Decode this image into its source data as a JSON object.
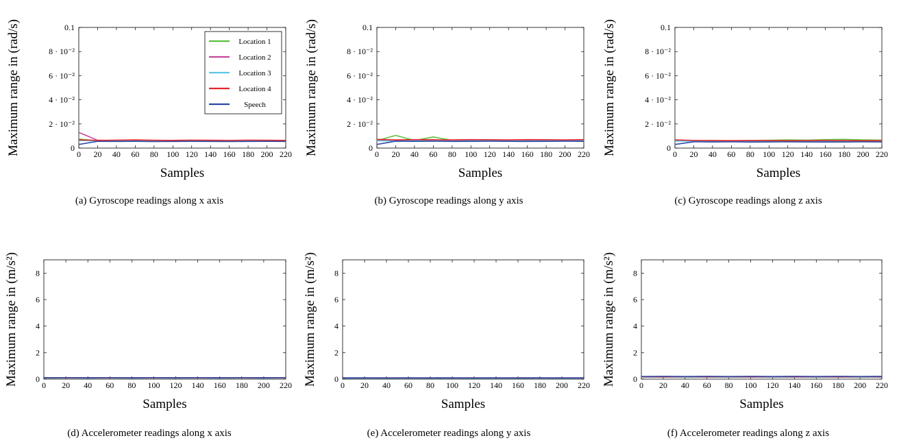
{
  "colors": {
    "Location 1": "#5cbf3a",
    "Location 2": "#c7479a",
    "Location 3": "#5bc6e6",
    "Location 4": "#e8242a",
    "Speech": "#2e4aa6"
  },
  "chart_data": [
    {
      "type": "line",
      "id": "a",
      "caption": "(a) Gyroscope readings along x axis",
      "xlabel": "Samples",
      "ylabel": "Maximum range in (rad/s)",
      "xlim": [
        0,
        220
      ],
      "ylim": [
        0,
        0.1
      ],
      "x_ticks": [
        0,
        20,
        40,
        60,
        80,
        100,
        120,
        140,
        160,
        180,
        200,
        220
      ],
      "x_tick_labels": [
        "0",
        "20",
        "40",
        "60",
        "80",
        "100",
        "120",
        "140",
        "160",
        "180",
        "200",
        "220"
      ],
      "y_ticks": [
        0,
        0.02,
        0.04,
        0.06,
        0.08,
        0.1
      ],
      "y_tick_labels": [
        "0",
        "2 · 10⁻²",
        "4 · 10⁻²",
        "6 · 10⁻²",
        "8 · 10⁻²",
        "0.1"
      ],
      "legend": "top-right",
      "series": [
        {
          "name": "Location 1",
          "values": [
            0.0075,
            0.006,
            0.0062,
            0.0058,
            0.0061,
            0.0059,
            0.006,
            0.0062,
            0.0058,
            0.006,
            0.0061,
            0.0059
          ]
        },
        {
          "name": "Location 2",
          "values": [
            0.013,
            0.0065,
            0.0062,
            0.006,
            0.0063,
            0.0061,
            0.006,
            0.0062,
            0.006,
            0.0061,
            0.0062,
            0.006
          ]
        },
        {
          "name": "Location 3",
          "values": [
            0.0062,
            0.006,
            0.0059,
            0.0061,
            0.006,
            0.0058,
            0.006,
            0.0059,
            0.0061,
            0.006,
            0.0059,
            0.006
          ]
        },
        {
          "name": "Location 4",
          "values": [
            0.0068,
            0.0064,
            0.0066,
            0.0068,
            0.0065,
            0.0064,
            0.0066,
            0.0065,
            0.0064,
            0.0066,
            0.0065,
            0.0064
          ]
        },
        {
          "name": "Speech",
          "values": [
            0.003,
            0.0056,
            0.0055,
            0.0056,
            0.0054,
            0.0055,
            0.0056,
            0.0055,
            0.0054,
            0.0055,
            0.0056,
            0.0055
          ]
        }
      ]
    },
    {
      "type": "line",
      "id": "b",
      "caption": "(b) Gyroscope readings along y axis",
      "xlabel": "Samples",
      "ylabel": "Maximum range in (rad/s)",
      "xlim": [
        0,
        220
      ],
      "ylim": [
        0,
        0.1
      ],
      "x_ticks": [
        0,
        20,
        40,
        60,
        80,
        100,
        120,
        140,
        160,
        180,
        200,
        220
      ],
      "x_tick_labels": [
        "0",
        "20",
        "40",
        "60",
        "80",
        "100",
        "120",
        "140",
        "160",
        "180",
        "200",
        "220"
      ],
      "y_ticks": [
        0,
        0.02,
        0.04,
        0.06,
        0.08,
        0.1
      ],
      "y_tick_labels": [
        "0",
        "2 · 10⁻²",
        "4 · 10⁻²",
        "6 · 10⁻²",
        "8 · 10⁻²",
        "0.1"
      ],
      "legend": "none",
      "series": [
        {
          "name": "Location 1",
          "values": [
            0.0062,
            0.0105,
            0.0063,
            0.0092,
            0.0064,
            0.0062,
            0.0063,
            0.0062,
            0.0064,
            0.0063,
            0.0062,
            0.0063
          ]
        },
        {
          "name": "Location 2",
          "values": [
            0.0064,
            0.0063,
            0.0062,
            0.0064,
            0.0063,
            0.0062,
            0.0064,
            0.0063,
            0.0062,
            0.0064,
            0.0063,
            0.0062
          ]
        },
        {
          "name": "Location 3",
          "values": [
            0.006,
            0.0059,
            0.0061,
            0.006,
            0.0059,
            0.006,
            0.0061,
            0.006,
            0.0059,
            0.006,
            0.0061,
            0.006
          ]
        },
        {
          "name": "Location 4",
          "values": [
            0.0072,
            0.0068,
            0.007,
            0.0069,
            0.0068,
            0.007,
            0.0069,
            0.0068,
            0.007,
            0.0069,
            0.0068,
            0.007
          ]
        },
        {
          "name": "Speech",
          "values": [
            0.003,
            0.0057,
            0.0056,
            0.0057,
            0.0055,
            0.0056,
            0.0057,
            0.0056,
            0.0055,
            0.0056,
            0.0057,
            0.0056
          ]
        }
      ]
    },
    {
      "type": "line",
      "id": "c",
      "caption": "(c) Gyroscope readings along z axis",
      "xlabel": "Samples",
      "ylabel": "Maximum range in (rad/s)",
      "xlim": [
        0,
        220
      ],
      "ylim": [
        0,
        0.1
      ],
      "x_ticks": [
        0,
        20,
        40,
        60,
        80,
        100,
        120,
        140,
        160,
        180,
        200,
        220
      ],
      "x_tick_labels": [
        "0",
        "20",
        "40",
        "60",
        "80",
        "100",
        "120",
        "140",
        "160",
        "180",
        "200",
        "220"
      ],
      "y_ticks": [
        0,
        0.02,
        0.04,
        0.06,
        0.08,
        0.1
      ],
      "y_tick_labels": [
        "0",
        "2 · 10⁻²",
        "4 · 10⁻²",
        "6 · 10⁻²",
        "8 · 10⁻²",
        "0.1"
      ],
      "legend": "none",
      "series": [
        {
          "name": "Location 1",
          "values": [
            0.0065,
            0.0062,
            0.006,
            0.0061,
            0.0063,
            0.0065,
            0.0068,
            0.0066,
            0.007,
            0.0072,
            0.0068,
            0.0066
          ]
        },
        {
          "name": "Location 2",
          "values": [
            0.006,
            0.0058,
            0.0059,
            0.006,
            0.0058,
            0.0059,
            0.006,
            0.0058,
            0.0059,
            0.006,
            0.0058,
            0.0059
          ]
        },
        {
          "name": "Location 3",
          "values": [
            0.0058,
            0.0057,
            0.0058,
            0.0056,
            0.0057,
            0.0058,
            0.0056,
            0.0057,
            0.0058,
            0.0056,
            0.0057,
            0.0058
          ]
        },
        {
          "name": "Location 4",
          "values": [
            0.0068,
            0.0064,
            0.0063,
            0.0062,
            0.0063,
            0.0062,
            0.0061,
            0.0062,
            0.0063,
            0.0062,
            0.0061,
            0.0062
          ]
        },
        {
          "name": "Speech",
          "values": [
            0.003,
            0.0052,
            0.0051,
            0.0052,
            0.005,
            0.0051,
            0.0052,
            0.0051,
            0.005,
            0.0051,
            0.0052,
            0.0051
          ]
        }
      ]
    },
    {
      "type": "line",
      "id": "d",
      "caption": "(d) Accelerometer readings along x axis",
      "xlabel": "Samples",
      "ylabel": "Maximum range in (m/s²)",
      "xlim": [
        0,
        220
      ],
      "ylim": [
        0,
        9
      ],
      "x_ticks": [
        0,
        20,
        40,
        60,
        80,
        100,
        120,
        140,
        160,
        180,
        200,
        220
      ],
      "x_tick_labels": [
        "0",
        "20",
        "40",
        "60",
        "80",
        "100",
        "120",
        "140",
        "160",
        "180",
        "200",
        "220"
      ],
      "y_ticks": [
        0,
        2,
        4,
        6,
        8
      ],
      "y_tick_labels": [
        "0",
        "2",
        "4",
        "6",
        "8"
      ],
      "legend": "none",
      "series": [
        {
          "name": "Location 1",
          "values": [
            0.09,
            0.1,
            0.09,
            0.1,
            0.09,
            0.1,
            0.09,
            0.1,
            0.09,
            0.1,
            0.09,
            0.1
          ]
        },
        {
          "name": "Location 2",
          "values": [
            0.1,
            0.09,
            0.1,
            0.09,
            0.1,
            0.09,
            0.1,
            0.09,
            0.1,
            0.09,
            0.1,
            0.09
          ]
        },
        {
          "name": "Location 3",
          "values": [
            0.08,
            0.09,
            0.08,
            0.09,
            0.08,
            0.09,
            0.08,
            0.09,
            0.08,
            0.09,
            0.08,
            0.09
          ]
        },
        {
          "name": "Location 4",
          "values": [
            0.11,
            0.1,
            0.11,
            0.1,
            0.11,
            0.1,
            0.11,
            0.1,
            0.11,
            0.1,
            0.11,
            0.1
          ]
        },
        {
          "name": "Speech",
          "values": [
            0.1,
            0.11,
            0.1,
            0.11,
            0.1,
            0.11,
            0.1,
            0.11,
            0.1,
            0.11,
            0.1,
            0.11
          ]
        }
      ]
    },
    {
      "type": "line",
      "id": "e",
      "caption": "(e) Accelerometer readings along y axis",
      "xlabel": "Samples",
      "ylabel": "Maximum range in (m/s²)",
      "xlim": [
        0,
        220
      ],
      "ylim": [
        0,
        9
      ],
      "x_ticks": [
        0,
        20,
        40,
        60,
        80,
        100,
        120,
        140,
        160,
        180,
        200,
        220
      ],
      "x_tick_labels": [
        "0",
        "20",
        "40",
        "60",
        "80",
        "100",
        "120",
        "140",
        "160",
        "180",
        "200",
        "220"
      ],
      "y_ticks": [
        0,
        2,
        4,
        6,
        8
      ],
      "y_tick_labels": [
        "0",
        "2",
        "4",
        "6",
        "8"
      ],
      "legend": "none",
      "series": [
        {
          "name": "Location 1",
          "values": [
            0.08,
            0.09,
            0.08,
            0.09,
            0.08,
            0.09,
            0.08,
            0.09,
            0.08,
            0.09,
            0.08,
            0.09
          ]
        },
        {
          "name": "Location 2",
          "values": [
            0.09,
            0.08,
            0.09,
            0.08,
            0.09,
            0.08,
            0.09,
            0.08,
            0.09,
            0.08,
            0.09,
            0.08
          ]
        },
        {
          "name": "Location 3",
          "values": [
            0.07,
            0.08,
            0.07,
            0.08,
            0.07,
            0.08,
            0.07,
            0.08,
            0.07,
            0.08,
            0.07,
            0.08
          ]
        },
        {
          "name": "Location 4",
          "values": [
            0.1,
            0.09,
            0.1,
            0.09,
            0.1,
            0.09,
            0.1,
            0.09,
            0.1,
            0.09,
            0.1,
            0.09
          ]
        },
        {
          "name": "Speech",
          "values": [
            0.09,
            0.1,
            0.09,
            0.1,
            0.09,
            0.1,
            0.09,
            0.1,
            0.09,
            0.1,
            0.09,
            0.1
          ]
        }
      ]
    },
    {
      "type": "line",
      "id": "f",
      "caption": "(f) Accelerometer readings along z axis",
      "xlabel": "Samples",
      "ylabel": "Maximum range in (m/s²)",
      "xlim": [
        0,
        220
      ],
      "ylim": [
        0,
        9
      ],
      "x_ticks": [
        0,
        20,
        40,
        60,
        80,
        100,
        120,
        140,
        160,
        180,
        200,
        220
      ],
      "x_tick_labels": [
        "0",
        "20",
        "40",
        "60",
        "80",
        "100",
        "120",
        "140",
        "160",
        "180",
        "200",
        "220"
      ],
      "y_ticks": [
        0,
        2,
        4,
        6,
        8
      ],
      "y_tick_labels": [
        "0",
        "2",
        "4",
        "6",
        "8"
      ],
      "legend": "none",
      "series": [
        {
          "name": "Location 1",
          "values": [
            0.15,
            0.16,
            0.15,
            0.16,
            0.15,
            0.16,
            0.15,
            0.16,
            0.15,
            0.16,
            0.15,
            0.16
          ]
        },
        {
          "name": "Location 2",
          "values": [
            0.17,
            0.16,
            0.17,
            0.16,
            0.17,
            0.16,
            0.17,
            0.16,
            0.17,
            0.16,
            0.17,
            0.16
          ]
        },
        {
          "name": "Location 3",
          "values": [
            0.14,
            0.15,
            0.14,
            0.15,
            0.14,
            0.15,
            0.14,
            0.15,
            0.14,
            0.15,
            0.14,
            0.15
          ]
        },
        {
          "name": "Location 4",
          "values": [
            0.18,
            0.17,
            0.18,
            0.17,
            0.18,
            0.17,
            0.18,
            0.17,
            0.18,
            0.17,
            0.18,
            0.17
          ]
        },
        {
          "name": "Speech",
          "values": [
            0.2,
            0.21,
            0.2,
            0.21,
            0.2,
            0.21,
            0.2,
            0.21,
            0.2,
            0.21,
            0.2,
            0.21
          ]
        }
      ]
    }
  ]
}
